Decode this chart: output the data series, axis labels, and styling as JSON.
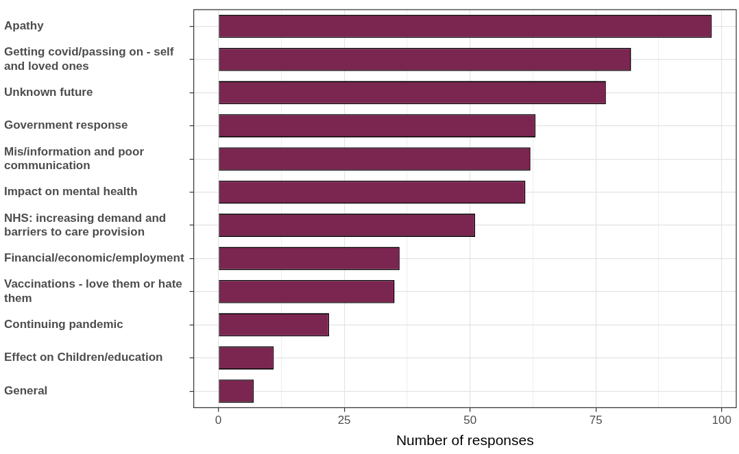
{
  "chart_data": {
    "type": "bar",
    "orientation": "horizontal",
    "xlabel": "Number of responses",
    "categories": [
      "Apathy",
      "Getting covid/passing on - self and loved ones",
      "Unknown future",
      "Government response",
      "Mis/information and poor communication",
      "Impact on mental health",
      "NHS: increasing demand and barriers to care provision",
      "Financial/economic/employment",
      "Vaccinations - love them or hate them",
      "Continuing pandemic",
      "Effect on Children/education",
      "General"
    ],
    "values": [
      98,
      82,
      77,
      63,
      62,
      61,
      51,
      36,
      35,
      22,
      11,
      7
    ],
    "color": "#7b2651",
    "xlim": [
      -4.9,
      102.9
    ],
    "xticks": [
      0,
      {
        "value": 12.5,
        "label": null
      },
      25,
      {
        "value": 37.5,
        "label": null
      },
      50,
      {
        "value": 62.5,
        "label": null
      },
      75,
      {
        "value": 87.5,
        "label": null
      },
      100
    ],
    "grid": true,
    "legend": false
  }
}
